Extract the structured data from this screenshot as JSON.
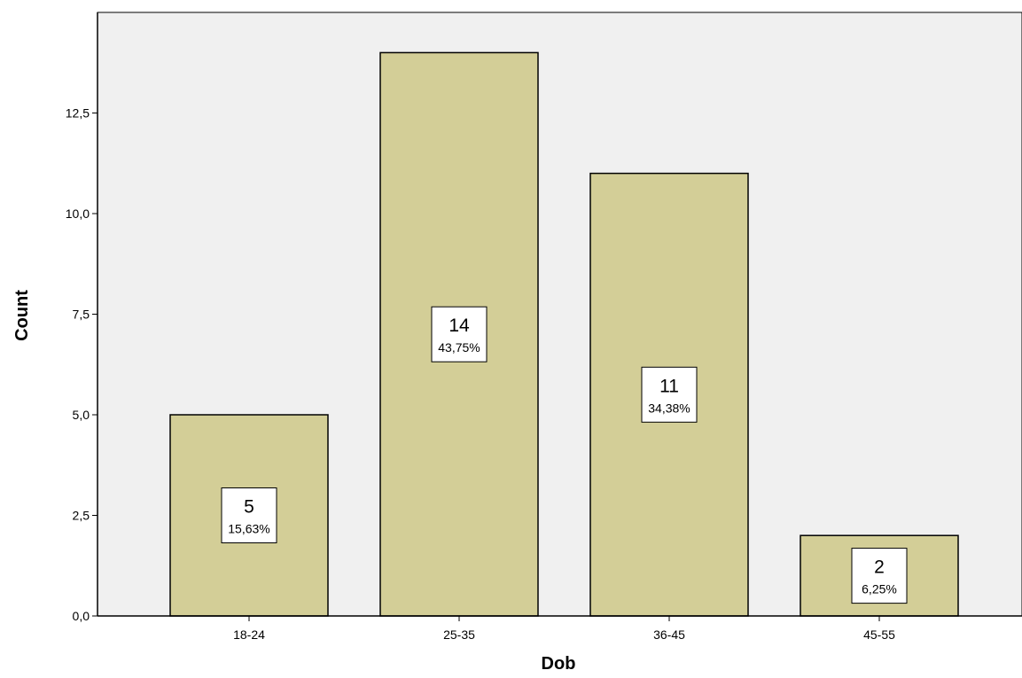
{
  "chart_data": {
    "type": "bar",
    "title": "",
    "xlabel": "Dob",
    "ylabel": "Count",
    "categories": [
      "18-24",
      "25-35",
      "36-45",
      "45-55"
    ],
    "values": [
      5,
      14,
      11,
      2
    ],
    "percent_labels": [
      "15,63%",
      "43,75%",
      "34,38%",
      "6,25%"
    ],
    "ylim": [
      0,
      15
    ],
    "yticks": [
      0,
      2.5,
      5,
      7.5,
      10,
      12.5
    ],
    "ytick_labels": [
      "0,0",
      "2,5",
      "5,0",
      "7,5",
      "10,0",
      "12,5"
    ],
    "grid": false,
    "colors": {
      "plot_background": "#f0f0f0",
      "bar_fill": "#d3ce97",
      "bar_stroke": "#000000",
      "label_box": "#ffffff"
    }
  }
}
